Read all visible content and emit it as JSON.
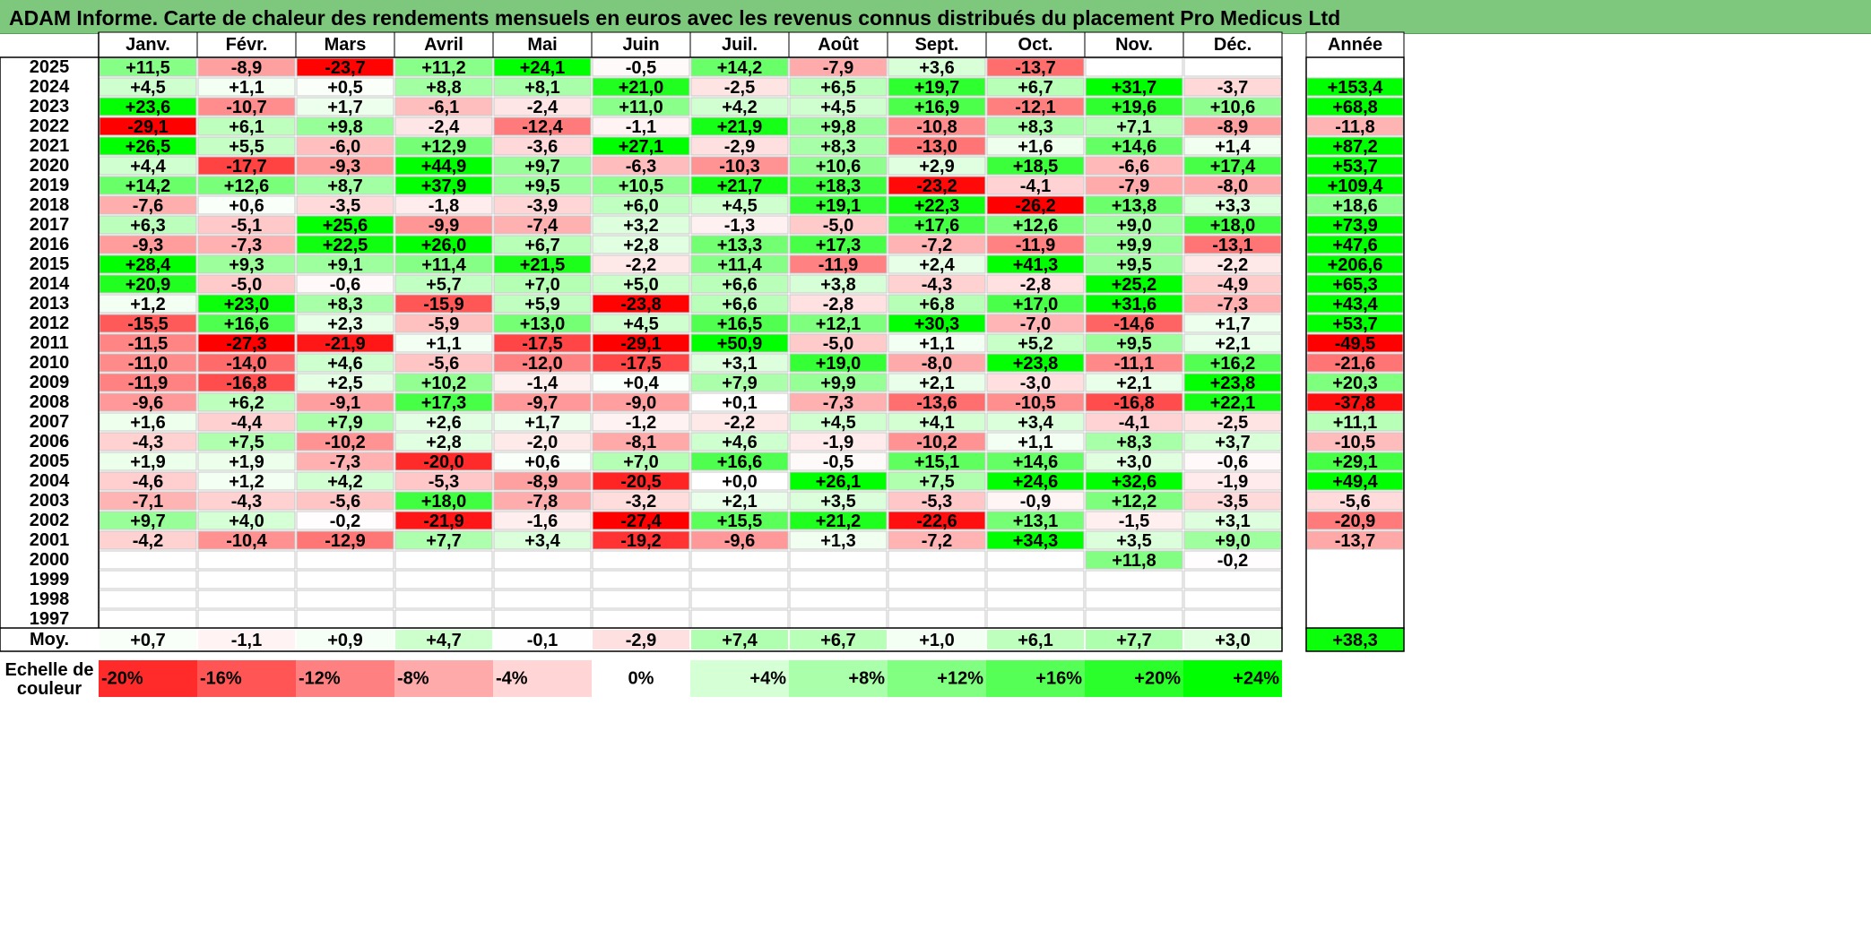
{
  "title": "ADAM Informe. Carte de chaleur des rendements mensuels en euros avec les revenus connus distribués du placement Pro Medicus Ltd",
  "chart_data": {
    "type": "heatmap",
    "months": [
      "Janv.",
      "Févr.",
      "Mars",
      "Avril",
      "Mai",
      "Juin",
      "Juil.",
      "Août",
      "Sept.",
      "Oct.",
      "Nov.",
      "Déc."
    ],
    "year_header": "Année",
    "avg_label": "Moy.",
    "years": [
      2025,
      2024,
      2023,
      2022,
      2021,
      2020,
      2019,
      2018,
      2017,
      2016,
      2015,
      2014,
      2013,
      2012,
      2011,
      2010,
      2009,
      2008,
      2007,
      2006,
      2005,
      2004,
      2003,
      2002,
      2001,
      2000,
      1999,
      1998,
      1997
    ],
    "values": [
      [
        11.5,
        -8.9,
        -23.7,
        11.2,
        24.1,
        -0.5,
        14.2,
        -7.9,
        3.6,
        -13.7,
        null,
        null
      ],
      [
        4.5,
        1.1,
        0.5,
        8.8,
        8.1,
        21.0,
        -2.5,
        6.5,
        19.7,
        6.7,
        31.7,
        -3.7
      ],
      [
        23.6,
        -10.7,
        1.7,
        -6.1,
        -2.4,
        11.0,
        4.2,
        4.5,
        16.9,
        -12.1,
        19.6,
        10.6
      ],
      [
        -29.1,
        6.1,
        9.8,
        -2.4,
        -12.4,
        -1.1,
        21.9,
        9.8,
        -10.8,
        8.3,
        7.1,
        -8.9
      ],
      [
        26.5,
        5.5,
        -6.0,
        12.9,
        -3.6,
        27.1,
        -2.9,
        8.3,
        -13.0,
        1.6,
        14.6,
        1.4
      ],
      [
        4.4,
        -17.7,
        -9.3,
        44.9,
        9.7,
        -6.3,
        -10.3,
        10.6,
        2.9,
        18.5,
        -6.6,
        17.4
      ],
      [
        14.2,
        12.6,
        8.7,
        37.9,
        9.5,
        10.5,
        21.7,
        18.3,
        -23.2,
        -4.1,
        -7.9,
        -8.0
      ],
      [
        -7.6,
        0.6,
        -3.5,
        -1.8,
        -3.9,
        6.0,
        4.5,
        19.1,
        22.3,
        -26.2,
        13.8,
        3.3
      ],
      [
        6.3,
        -5.1,
        25.6,
        -9.9,
        -7.4,
        3.2,
        -1.3,
        -5.0,
        17.6,
        12.6,
        9.0,
        18.0
      ],
      [
        -9.3,
        -7.3,
        22.5,
        26.0,
        6.7,
        2.8,
        13.3,
        17.3,
        -7.2,
        -11.9,
        9.9,
        -13.1
      ],
      [
        28.4,
        9.3,
        9.1,
        11.4,
        21.5,
        -2.2,
        11.4,
        -11.9,
        2.4,
        41.3,
        9.5,
        -2.2
      ],
      [
        20.9,
        -5.0,
        -0.6,
        5.7,
        7.0,
        5.0,
        6.6,
        3.8,
        -4.3,
        -2.8,
        25.2,
        -4.9
      ],
      [
        1.2,
        23.0,
        8.3,
        -15.9,
        5.9,
        -23.8,
        6.6,
        -2.8,
        6.8,
        17.0,
        31.6,
        -7.3
      ],
      [
        -15.5,
        16.6,
        2.3,
        -5.9,
        13.0,
        4.5,
        16.5,
        12.1,
        30.3,
        -7.0,
        -14.6,
        1.7
      ],
      [
        -11.5,
        -27.3,
        -21.9,
        1.1,
        -17.5,
        -29.1,
        50.9,
        -5.0,
        1.1,
        5.2,
        9.5,
        2.1
      ],
      [
        -11.0,
        -14.0,
        4.6,
        -5.6,
        -12.0,
        -17.5,
        3.1,
        19.0,
        -8.0,
        23.8,
        -11.1,
        16.2
      ],
      [
        -11.9,
        -16.8,
        2.5,
        10.2,
        -1.4,
        0.4,
        7.9,
        9.9,
        2.1,
        -3.0,
        2.1,
        23.8
      ],
      [
        -9.6,
        6.2,
        -9.1,
        17.3,
        -9.7,
        -9.0,
        0.1,
        -7.3,
        -13.6,
        -10.5,
        -16.8,
        22.1
      ],
      [
        1.6,
        -4.4,
        7.9,
        2.6,
        1.7,
        -1.2,
        -2.2,
        4.5,
        4.1,
        3.4,
        -4.1,
        -2.5
      ],
      [
        -4.3,
        7.5,
        -10.2,
        2.8,
        -2.0,
        -8.1,
        4.6,
        -1.9,
        -10.2,
        1.1,
        8.3,
        3.7
      ],
      [
        1.9,
        1.9,
        -7.3,
        -20.0,
        0.6,
        7.0,
        16.6,
        -0.5,
        15.1,
        14.6,
        3.0,
        -0.6
      ],
      [
        -4.6,
        1.2,
        4.2,
        -5.3,
        -8.9,
        -20.5,
        0.0,
        26.1,
        7.5,
        24.6,
        32.6,
        -1.9
      ],
      [
        -7.1,
        -4.3,
        -5.6,
        18.0,
        -7.8,
        -3.2,
        2.1,
        3.5,
        -5.3,
        -0.9,
        12.2,
        -3.5
      ],
      [
        9.7,
        4.0,
        -0.2,
        -21.9,
        -1.6,
        -27.4,
        15.5,
        21.2,
        -22.6,
        13.1,
        -1.5,
        3.1
      ],
      [
        -4.2,
        -10.4,
        -12.9,
        7.7,
        3.4,
        -19.2,
        -9.6,
        1.3,
        -7.2,
        34.3,
        3.5,
        9.0
      ],
      [
        null,
        null,
        null,
        null,
        null,
        null,
        null,
        null,
        null,
        null,
        11.8,
        -0.2
      ],
      [
        null,
        null,
        null,
        null,
        null,
        null,
        null,
        null,
        null,
        null,
        null,
        null
      ],
      [
        null,
        null,
        null,
        null,
        null,
        null,
        null,
        null,
        null,
        null,
        null,
        null
      ],
      [
        null,
        null,
        null,
        null,
        null,
        null,
        null,
        null,
        null,
        null,
        null,
        null
      ]
    ],
    "annual": [
      null,
      153.4,
      68.8,
      -11.8,
      87.2,
      53.7,
      109.4,
      18.6,
      73.9,
      47.6,
      206.6,
      65.3,
      43.4,
      53.7,
      -49.5,
      -21.6,
      20.3,
      -37.8,
      11.1,
      -10.5,
      29.1,
      49.4,
      -5.6,
      -20.9,
      -13.7,
      null,
      null,
      null,
      null
    ],
    "averages": [
      0.7,
      -1.1,
      0.9,
      4.7,
      -0.1,
      -2.9,
      7.4,
      6.7,
      1.0,
      6.1,
      7.7,
      3.0
    ],
    "annual_average": 38.3,
    "scale_label": [
      "Echelle de",
      "couleur"
    ],
    "scale": [
      {
        "value": -20,
        "label": "-20%"
      },
      {
        "value": -16,
        "label": "-16%"
      },
      {
        "value": -12,
        "label": "-12%"
      },
      {
        "value": -8,
        "label": "-8%"
      },
      {
        "value": -4,
        "label": "-4%"
      },
      {
        "value": 0,
        "label": "0%"
      },
      {
        "value": 4,
        "label": "+4%"
      },
      {
        "value": 8,
        "label": "+8%"
      },
      {
        "value": 12,
        "label": "+12%"
      },
      {
        "value": 16,
        "label": "+16%"
      },
      {
        "value": 20,
        "label": "+20%"
      },
      {
        "value": 24,
        "label": "+24%"
      }
    ],
    "colors": {
      "negative": "#ff0000",
      "neutral": "#ffffff",
      "positive": "#00ff00",
      "title_bg": "#7ec87e"
    }
  }
}
